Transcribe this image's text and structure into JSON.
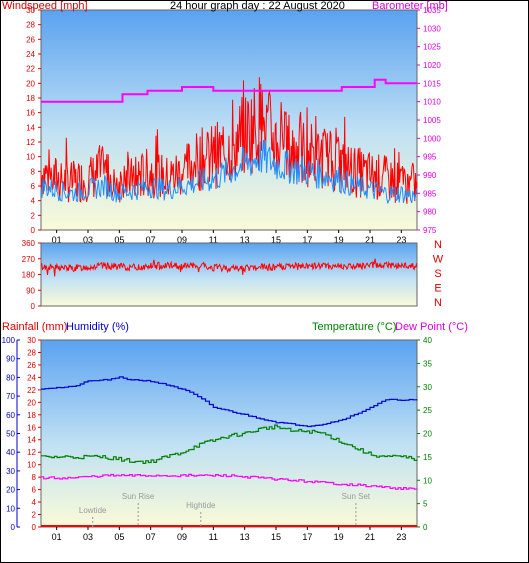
{
  "chart_data": [
    {
      "type": "line",
      "title": "24 hour graph day : 22 August 2020",
      "ylabel": "Windspeed [mph]",
      "y2label": "Barometer [mb]",
      "ylim": [
        0,
        30
      ],
      "y2lim": [
        975,
        1035
      ],
      "yticks": [
        "0",
        "2",
        "4",
        "6",
        "8",
        "10",
        "12",
        "14",
        "16",
        "18",
        "20",
        "22",
        "24",
        "26",
        "28",
        "30"
      ],
      "y2ticks": [
        "975",
        "980",
        "985",
        "990",
        "995",
        "1000",
        "1005",
        "1010",
        "1015",
        "1020",
        "1025",
        "1030",
        "1035"
      ],
      "xticks": [
        "01",
        "03",
        "05",
        "07",
        "09",
        "11",
        "13",
        "15",
        "17",
        "19",
        "21",
        "23"
      ],
      "series": [
        {
          "color": "#ff0000",
          "x": [
            0,
            1,
            2,
            3,
            4,
            5,
            6,
            7,
            8,
            9,
            10,
            11,
            12,
            13,
            14,
            15,
            16,
            17,
            18,
            19,
            20,
            21,
            22,
            23,
            24
          ],
          "values": [
            8,
            7,
            6.5,
            7,
            8,
            6.5,
            7,
            8,
            7,
            8,
            9.5,
            10,
            11,
            13,
            15,
            12,
            11,
            10.5,
            10,
            9,
            8,
            7.5,
            7,
            6.5,
            6
          ]
        },
        {
          "color": "#1e90ff",
          "x": [
            0,
            1,
            2,
            3,
            4,
            5,
            6,
            7,
            8,
            9,
            10,
            11,
            12,
            13,
            14,
            15,
            16,
            17,
            18,
            19,
            20,
            21,
            22,
            23,
            24
          ],
          "values": [
            6,
            5.5,
            5,
            5.5,
            6,
            5,
            5.5,
            6,
            5.5,
            6,
            6.5,
            7,
            8,
            9,
            10,
            9,
            8.5,
            8,
            7.5,
            7,
            6,
            5.5,
            5,
            5,
            4.5
          ]
        },
        {
          "color": "#ff00ff",
          "axis": "right",
          "x": [
            0,
            4.8,
            5.2,
            6.4,
            6.8,
            8,
            9,
            10.5,
            11,
            12.2,
            15,
            17,
            19.2,
            20.8,
            21.3,
            22,
            24
          ],
          "values": [
            1010,
            1010,
            1012,
            1012,
            1013,
            1013,
            1014,
            1014,
            1013,
            1013,
            1013,
            1013,
            1014,
            1014,
            1016,
            1015,
            1015
          ]
        }
      ]
    },
    {
      "type": "line",
      "yticks": [
        "0",
        "90",
        "180",
        "270",
        "360"
      ],
      "y2ticks": [
        "N",
        "W",
        "S",
        "E",
        "N"
      ],
      "ylim": [
        0,
        360
      ],
      "series": [
        {
          "color": "#ff0000",
          "x": [
            0,
            2,
            4,
            6,
            8,
            10,
            12,
            14,
            16,
            18,
            20,
            22,
            24
          ],
          "values": [
            225,
            215,
            230,
            220,
            235,
            225,
            215,
            220,
            225,
            230,
            225,
            235,
            225
          ]
        }
      ]
    },
    {
      "type": "line",
      "ylabel": "Rainfall (mm)",
      "ylabel2": "Humidity (%)",
      "y2label": "Temperature (°C)",
      "y2label2": "Dew Point (°C)",
      "ylim": [
        0,
        30
      ],
      "humidity_lim": [
        0,
        100
      ],
      "y2lim": [
        0,
        40
      ],
      "yticks": [
        "0",
        "2",
        "4",
        "6",
        "8",
        "10",
        "12",
        "14",
        "16",
        "18",
        "20",
        "22",
        "24",
        "26",
        "28",
        "30"
      ],
      "humidity_ticks": [
        "0",
        "10",
        "20",
        "30",
        "40",
        "50",
        "60",
        "70",
        "80",
        "90",
        "100"
      ],
      "y2ticks": [
        "0",
        "5",
        "10",
        "15",
        "20",
        "25",
        "30",
        "35",
        "40"
      ],
      "xticks": [
        "01",
        "03",
        "05",
        "07",
        "09",
        "11",
        "13",
        "15",
        "17",
        "19",
        "21",
        "23"
      ],
      "annotations": [
        {
          "text": "Lowtide",
          "x": 3.3
        },
        {
          "text": "Sun Rise",
          "x": 6.2
        },
        {
          "text": "Hightide",
          "x": 10.2
        },
        {
          "text": "Sun Set",
          "x": 20.1
        }
      ],
      "series": [
        {
          "name": "Humidity",
          "color": "#0000cd",
          "x": [
            0,
            2,
            3,
            4.5,
            5,
            5.5,
            7,
            8.5,
            9.5,
            10.5,
            11,
            12,
            13,
            14,
            15,
            16,
            17,
            18,
            19,
            20,
            21,
            22,
            23,
            24
          ],
          "values": [
            74,
            75,
            78,
            79,
            80,
            79,
            78,
            75,
            72,
            67,
            64,
            62,
            60,
            58,
            56,
            55,
            54,
            55,
            57,
            60,
            64,
            68,
            68,
            68
          ]
        },
        {
          "name": "Temperature",
          "color": "#008000",
          "x": [
            0,
            2,
            4,
            5,
            6,
            7,
            8,
            9,
            10,
            11,
            12,
            13,
            14,
            15,
            16,
            17,
            18,
            19,
            20,
            21,
            22,
            23,
            24
          ],
          "values": [
            15,
            15,
            15,
            14.5,
            14,
            14,
            15,
            16,
            17.5,
            18.5,
            19.5,
            20,
            21,
            21.5,
            20.5,
            20.5,
            20,
            18.5,
            17,
            15.5,
            15,
            15,
            14.5
          ]
        },
        {
          "name": "Dew Point",
          "color": "#ff00ff",
          "x": [
            0,
            2,
            4,
            6,
            8,
            10,
            12,
            14,
            16,
            18,
            20,
            22,
            24
          ],
          "values": [
            10.5,
            10.5,
            11,
            11,
            11,
            11,
            11,
            10.5,
            10,
            9.5,
            9,
            8.5,
            8
          ]
        },
        {
          "name": "Rainfall",
          "color": "#ff0000",
          "x": [
            0,
            24
          ],
          "values": [
            0,
            0
          ]
        }
      ]
    }
  ]
}
